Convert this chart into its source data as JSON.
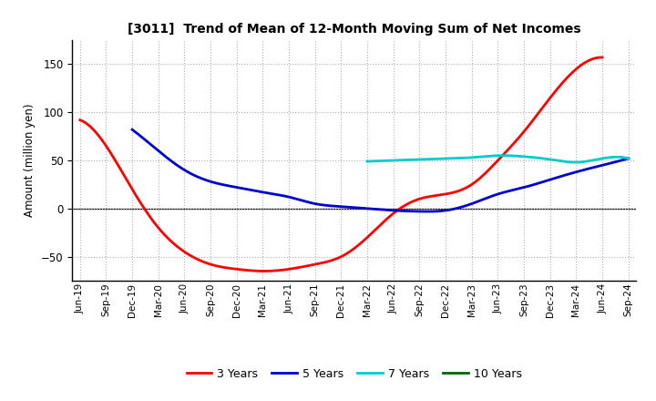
{
  "title": "[3011]  Trend of Mean of 12-Month Moving Sum of Net Incomes",
  "ylabel": "Amount (million yen)",
  "background_color": "#ffffff",
  "grid_color": "#b0b0b0",
  "ylim": [
    -75,
    175
  ],
  "yticks": [
    -50,
    0,
    50,
    100,
    150
  ],
  "x_labels": [
    "Jun-19",
    "Sep-19",
    "Dec-19",
    "Mar-20",
    "Jun-20",
    "Sep-20",
    "Dec-20",
    "Mar-21",
    "Jun-21",
    "Sep-21",
    "Dec-21",
    "Mar-22",
    "Jun-22",
    "Sep-22",
    "Dec-22",
    "Mar-23",
    "Jun-23",
    "Sep-23",
    "Dec-23",
    "Mar-24",
    "Jun-24",
    "Sep-24"
  ],
  "series": {
    "3 Years": {
      "color": "#ff0000",
      "data_x": [
        0,
        1,
        2,
        3,
        4,
        5,
        6,
        7,
        8,
        9,
        10,
        11,
        12,
        13,
        14,
        15,
        16,
        17,
        18,
        19,
        20
      ],
      "data_y": [
        92,
        65,
        20,
        -20,
        -45,
        -58,
        -63,
        -65,
        -63,
        -58,
        -50,
        -30,
        -5,
        10,
        15,
        25,
        50,
        80,
        115,
        145,
        157
      ]
    },
    "5 Years": {
      "color": "#0000cc",
      "data_x": [
        2,
        3,
        4,
        5,
        6,
        7,
        8,
        9,
        10,
        11,
        12,
        13,
        14,
        15,
        16,
        17,
        18,
        19,
        20,
        21
      ],
      "data_y": [
        82,
        60,
        40,
        28,
        22,
        17,
        12,
        5,
        2,
        0,
        -2,
        -3,
        -2,
        5,
        15,
        22,
        30,
        38,
        45,
        52
      ]
    },
    "7 Years": {
      "color": "#00cccc",
      "data_x": [
        11,
        12,
        13,
        14,
        15,
        16,
        17,
        18,
        19,
        20,
        21
      ],
      "data_y": [
        49,
        50,
        51,
        52,
        53,
        55,
        54,
        51,
        48,
        52,
        52
      ]
    },
    "10 Years": {
      "color": "#006600",
      "data_x": [],
      "data_y": []
    }
  },
  "legend_entries": [
    "3 Years",
    "5 Years",
    "7 Years",
    "10 Years"
  ],
  "legend_colors": [
    "#ff0000",
    "#0000cc",
    "#00cccc",
    "#006600"
  ]
}
